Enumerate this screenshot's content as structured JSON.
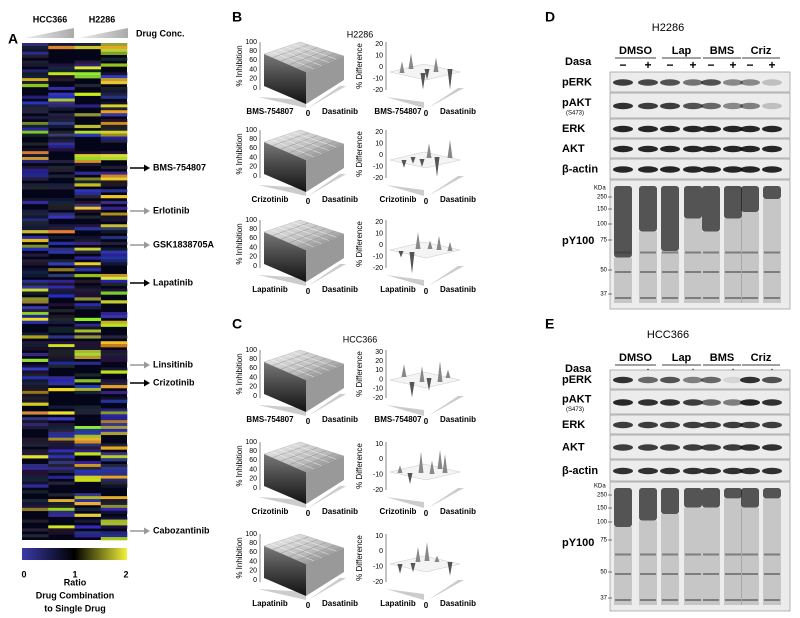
{
  "panel_a": {
    "letter": "A",
    "columns": [
      "HCC366",
      "H2286"
    ],
    "conc_label": "Drug Conc.",
    "drugs": [
      {
        "name": "BMS-754807",
        "color": "#000000"
      },
      {
        "name": "Erlotinib",
        "color": "#999999"
      },
      {
        "name": "GSK1838705A",
        "color": "#999999"
      },
      {
        "name": "Lapatinib",
        "color": "#000000"
      },
      {
        "name": "Linsitinib",
        "color": "#999999"
      },
      {
        "name": "Crizotinib",
        "color": "#000000"
      },
      {
        "name": "Cabozantinib",
        "color": "#999999"
      }
    ],
    "colorbar": {
      "ticks": [
        0,
        1,
        2
      ],
      "caption": [
        "Ratio",
        "Drug Combination",
        "to Single Drug"
      ]
    }
  },
  "panel_b": {
    "letter": "B",
    "title": "H2286",
    "inhibition_label": "% Inhibition",
    "difference_label": "% Difference",
    "inhibition_ticks": [
      0,
      20,
      40,
      60,
      80,
      100
    ],
    "partner": "Dasatinib",
    "axis_origin": "0",
    "rows": [
      {
        "drug": "BMS-754807",
        "difference_ticks": [
          20,
          10,
          0,
          -10,
          -20
        ]
      },
      {
        "drug": "Crizotinib",
        "difference_ticks": [
          20,
          10,
          0,
          -10,
          -20
        ]
      },
      {
        "drug": "Lapatinib",
        "difference_ticks": [
          20,
          10,
          0,
          -10,
          -20
        ]
      }
    ]
  },
  "panel_c": {
    "letter": "C",
    "title": "HCC366",
    "inhibition_label": "% Inhibition",
    "difference_label": "% Difference",
    "inhibition_ticks": [
      0,
      20,
      40,
      60,
      80,
      100
    ],
    "partner": "Dasatinib",
    "axis_origin": "0",
    "rows": [
      {
        "drug": "BMS-754807",
        "difference_ticks": [
          30,
          20,
          10,
          0,
          -10,
          -20
        ]
      },
      {
        "drug": "Crizotinib",
        "difference_ticks": [
          10,
          0,
          -10,
          -20
        ]
      },
      {
        "drug": "Lapatinib",
        "difference_ticks": [
          10,
          0,
          -10,
          -20
        ]
      }
    ]
  },
  "panel_d": {
    "letter": "D",
    "title": "H2286",
    "treatment": "Dasa",
    "groups": [
      "DMSO",
      "Lap",
      "BMS",
      "Criz"
    ],
    "signs": [
      "−",
      "+"
    ],
    "blots": [
      "pERK",
      "pAKT",
      "ERK",
      "AKT",
      "β-actin",
      "pY100"
    ],
    "pakt_site": "(S473)",
    "marker_unit": "KDa",
    "markers": [
      250,
      150,
      100,
      75,
      50,
      37
    ]
  },
  "panel_e": {
    "letter": "E",
    "title": "HCC366",
    "treatment": "Dasa",
    "groups": [
      "DMSO",
      "Lap",
      "BMS",
      "Criz"
    ],
    "signs": [
      "−",
      "+"
    ],
    "blots": [
      "pERK",
      "pAKT",
      "ERK",
      "AKT",
      "β-actin",
      "pY100"
    ],
    "pakt_site": "(S473)",
    "marker_unit": "KDa",
    "markers": [
      250,
      150,
      100,
      75,
      50,
      37
    ]
  }
}
